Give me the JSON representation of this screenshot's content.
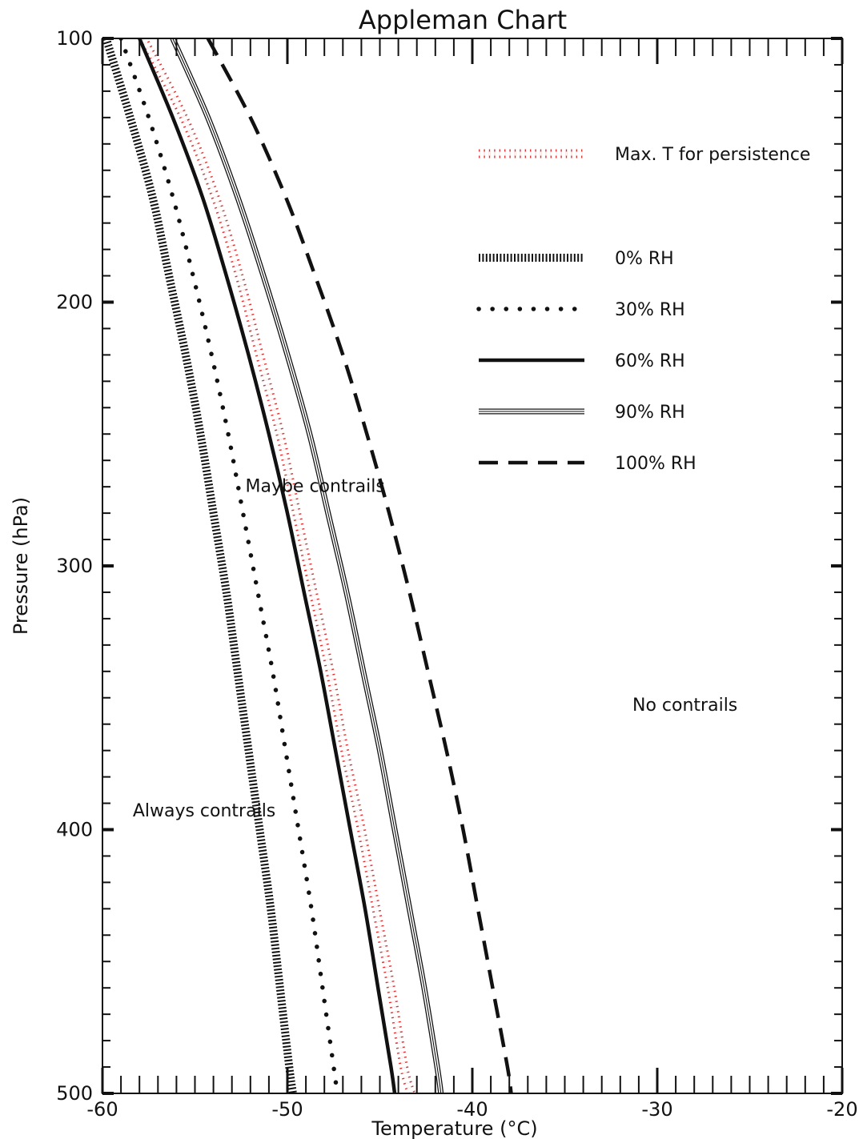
{
  "chart_data": {
    "type": "line",
    "title": "Appleman Chart",
    "xlabel": "Temperature (°C)",
    "ylabel": "Pressure (hPa)",
    "xlim": [
      -60,
      -20
    ],
    "ylim": [
      100,
      500
    ],
    "y_inverted": true,
    "x_ticks": [
      -60,
      -50,
      -40,
      -30,
      -20
    ],
    "y_ticks": [
      100,
      200,
      300,
      400,
      500
    ],
    "x_tick_labels": [
      "-60",
      "-50",
      "-40",
      "-30",
      "-20"
    ],
    "y_tick_labels": [
      "100",
      "200",
      "300",
      "400",
      "500"
    ],
    "grid": false,
    "legend_position": "top-right",
    "series": [
      {
        "name": "Max. T for persistence",
        "style": "red-diamonds",
        "color": "#e03030",
        "points": [
          [
            -57.8,
            100
          ],
          [
            -55.6,
            130
          ],
          [
            -53.9,
            160
          ],
          [
            -52.6,
            190
          ],
          [
            -51.5,
            220
          ],
          [
            -50.4,
            250
          ],
          [
            -49.5,
            280
          ],
          [
            -48.6,
            310
          ],
          [
            -47.7,
            340
          ],
          [
            -46.9,
            370
          ],
          [
            -46.0,
            400
          ],
          [
            -45.2,
            430
          ],
          [
            -44.4,
            460
          ],
          [
            -43.7,
            490
          ],
          [
            -43.3,
            500
          ]
        ]
      },
      {
        "name": "0% RH",
        "style": "hatched",
        "color": "#111111",
        "points": [
          [
            -59.8,
            100
          ],
          [
            -58.5,
            130
          ],
          [
            -57.3,
            160
          ],
          [
            -56.4,
            190
          ],
          [
            -55.5,
            220
          ],
          [
            -54.7,
            250
          ],
          [
            -54.0,
            280
          ],
          [
            -53.3,
            310
          ],
          [
            -52.7,
            340
          ],
          [
            -52.1,
            370
          ],
          [
            -51.5,
            400
          ],
          [
            -50.9,
            430
          ],
          [
            -50.4,
            460
          ],
          [
            -49.9,
            490
          ],
          [
            -49.7,
            500
          ]
        ]
      },
      {
        "name": "30% RH",
        "style": "dotted",
        "color": "#111111",
        "points": [
          [
            -59.0,
            100
          ],
          [
            -57.5,
            130
          ],
          [
            -56.2,
            160
          ],
          [
            -55.1,
            190
          ],
          [
            -54.1,
            220
          ],
          [
            -53.2,
            250
          ],
          [
            -52.4,
            280
          ],
          [
            -51.6,
            310
          ],
          [
            -50.8,
            340
          ],
          [
            -50.1,
            370
          ],
          [
            -49.4,
            400
          ],
          [
            -48.7,
            430
          ],
          [
            -48.1,
            460
          ],
          [
            -47.5,
            490
          ],
          [
            -47.3,
            500
          ]
        ]
      },
      {
        "name": "60% RH",
        "style": "solid-thick",
        "color": "#111111",
        "points": [
          [
            -58.0,
            100
          ],
          [
            -56.2,
            130
          ],
          [
            -54.6,
            160
          ],
          [
            -53.3,
            190
          ],
          [
            -52.1,
            220
          ],
          [
            -51.0,
            250
          ],
          [
            -50.0,
            280
          ],
          [
            -49.1,
            310
          ],
          [
            -48.2,
            340
          ],
          [
            -47.4,
            370
          ],
          [
            -46.6,
            400
          ],
          [
            -45.8,
            430
          ],
          [
            -45.1,
            460
          ],
          [
            -44.4,
            490
          ],
          [
            -44.2,
            500
          ]
        ]
      },
      {
        "name": "90% RH",
        "style": "triple-thin",
        "color": "#111111",
        "points": [
          [
            -56.2,
            100
          ],
          [
            -54.3,
            130
          ],
          [
            -52.7,
            160
          ],
          [
            -51.3,
            190
          ],
          [
            -50.0,
            220
          ],
          [
            -48.8,
            250
          ],
          [
            -47.8,
            280
          ],
          [
            -46.8,
            310
          ],
          [
            -45.9,
            340
          ],
          [
            -45.0,
            370
          ],
          [
            -44.2,
            400
          ],
          [
            -43.4,
            430
          ],
          [
            -42.6,
            460
          ],
          [
            -41.9,
            490
          ],
          [
            -41.7,
            500
          ]
        ]
      },
      {
        "name": "100% RH",
        "style": "dashed",
        "color": "#111111",
        "points": [
          [
            -54.3,
            100
          ],
          [
            -52.0,
            130
          ],
          [
            -50.1,
            160
          ],
          [
            -48.5,
            190
          ],
          [
            -47.0,
            220
          ],
          [
            -45.7,
            250
          ],
          [
            -44.5,
            280
          ],
          [
            -43.4,
            310
          ],
          [
            -42.4,
            340
          ],
          [
            -41.4,
            370
          ],
          [
            -40.5,
            400
          ],
          [
            -39.7,
            430
          ],
          [
            -38.9,
            460
          ],
          [
            -38.1,
            490
          ],
          [
            -37.9,
            500
          ]
        ]
      }
    ],
    "annotations": [
      {
        "text": "Maybe contrails",
        "x": -48.5,
        "y": 272
      },
      {
        "text": "No contrails",
        "x": -28.5,
        "y": 355
      },
      {
        "text": "Always contrails",
        "x": -54.5,
        "y": 395
      }
    ]
  }
}
